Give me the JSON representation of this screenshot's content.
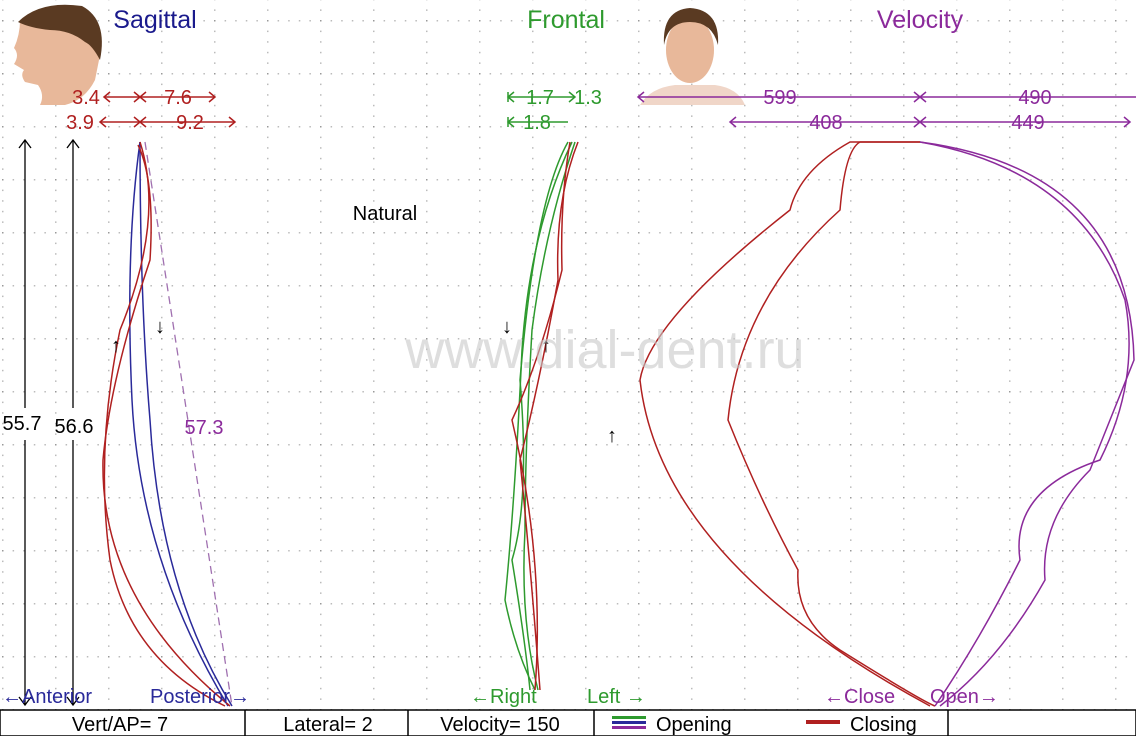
{
  "panels": {
    "sagittal": {
      "title": "Sagittal",
      "measures": [
        "3.4",
        "7.6",
        "3.9",
        "9.2"
      ],
      "vertical": [
        "55.7",
        "56.6"
      ],
      "path_length": "57.3",
      "axis": [
        "←Anterior",
        "Posterior→"
      ]
    },
    "frontal": {
      "title": "Frontal",
      "measures": [
        "1.7",
        "1.3",
        "1.8"
      ],
      "axis": [
        "←Right",
        "Left →"
      ]
    },
    "velocity": {
      "title": "Velocity",
      "measures": [
        "599",
        "490",
        "408",
        "449"
      ],
      "axis": [
        "←Close",
        "Open→"
      ]
    }
  },
  "mode": "Natural",
  "watermark": "www.dial-dent.ru",
  "status_bar": {
    "vert_ap": "Vert/AP= 7",
    "lateral": "Lateral= 2",
    "velocity": "Velocity= 150",
    "legend": [
      "Opening",
      "Closing"
    ]
  }
}
